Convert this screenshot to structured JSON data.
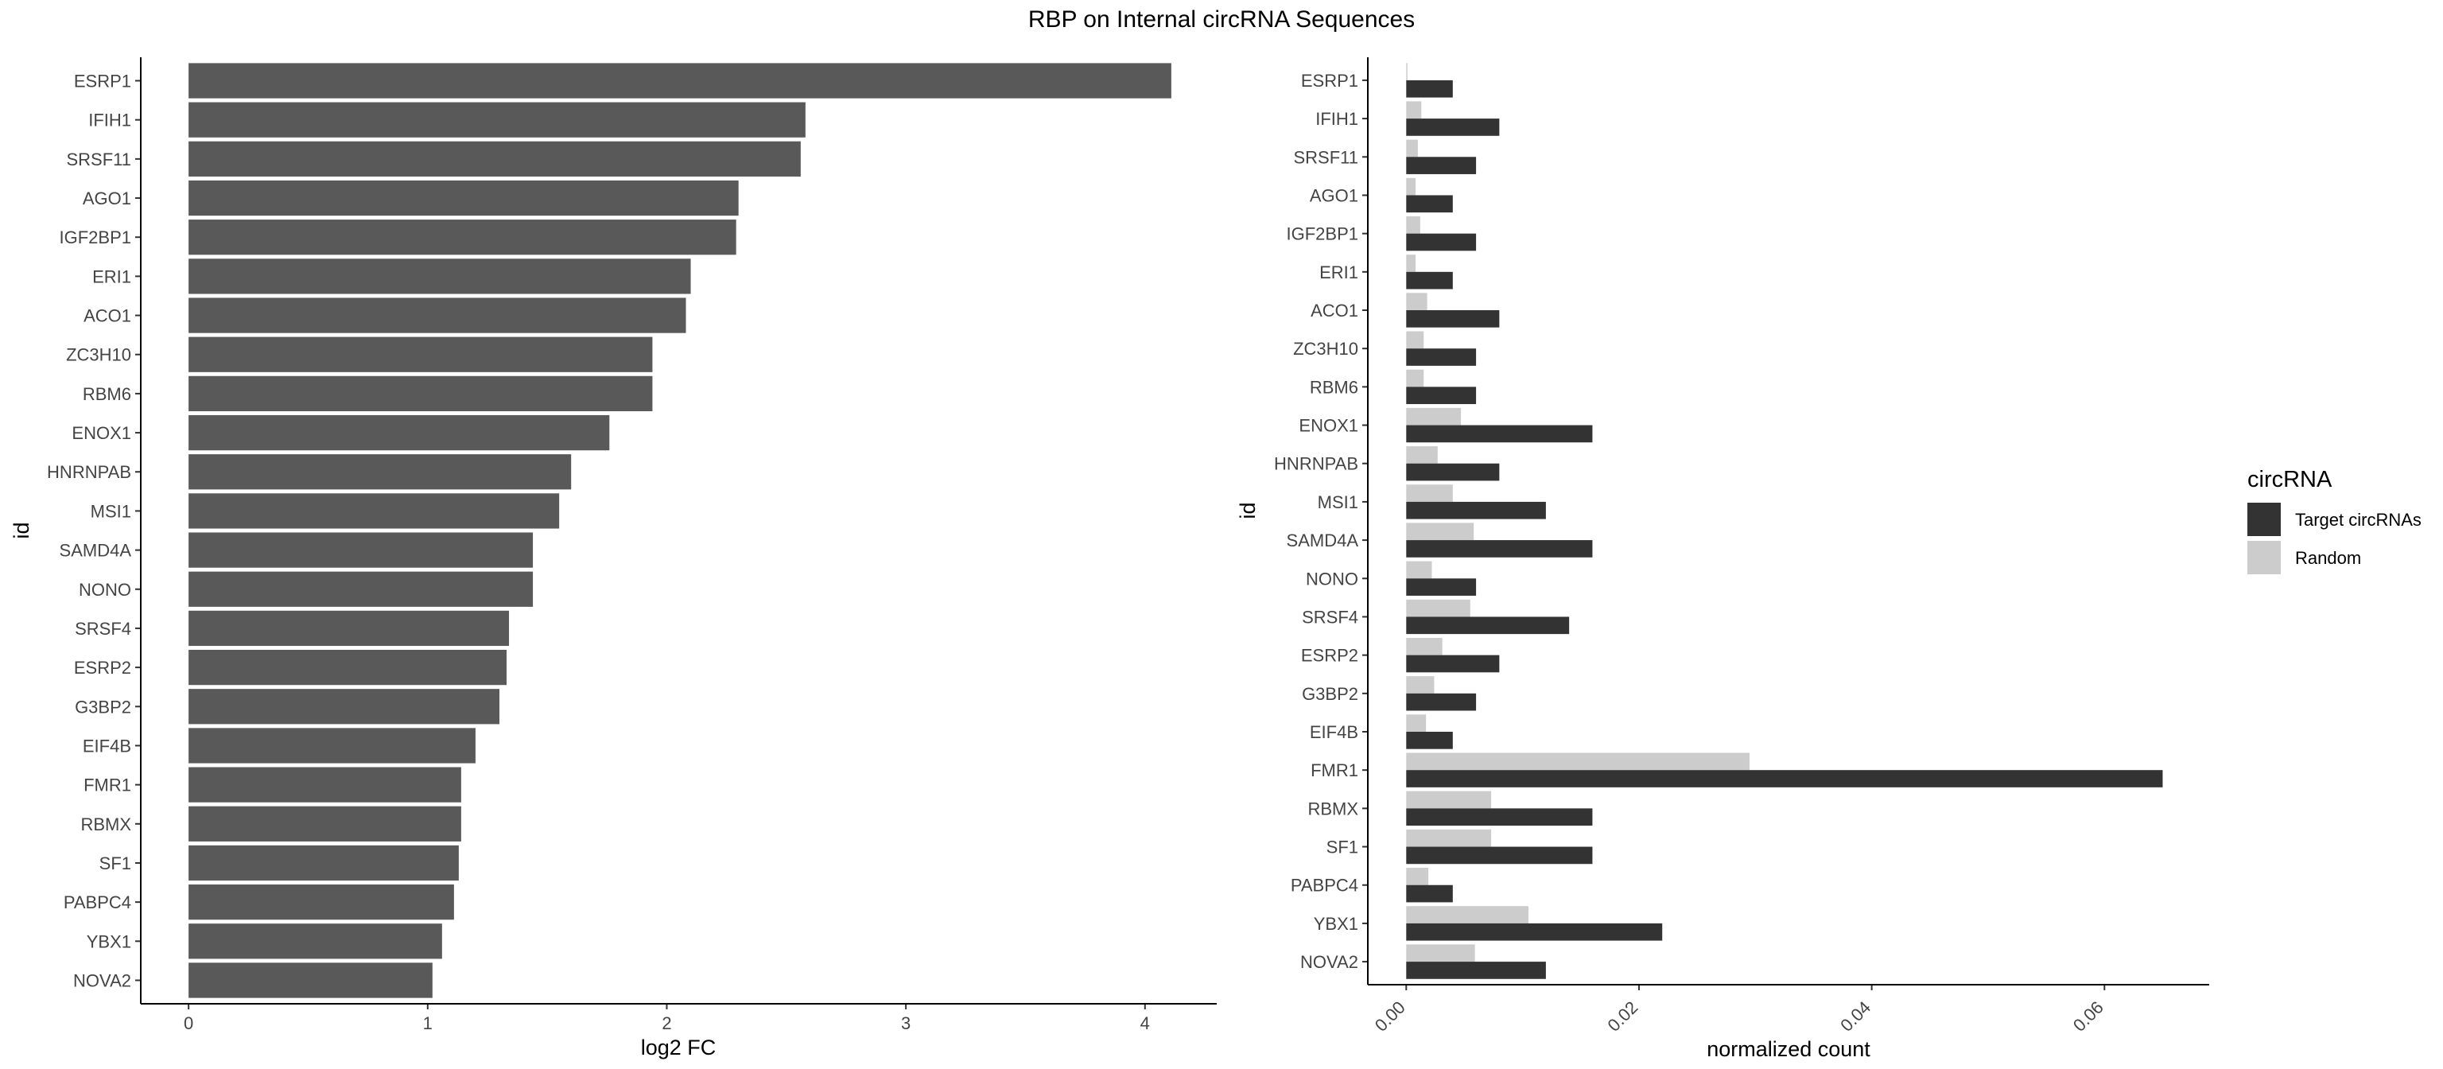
{
  "title": "RBP on Internal circRNA Sequences",
  "chart_data": [
    {
      "type": "bar",
      "orientation": "horizontal",
      "categories": [
        "ESRP1",
        "IFIH1",
        "SRSF11",
        "AGO1",
        "IGF2BP1",
        "ERI1",
        "ACO1",
        "ZC3H10",
        "RBM6",
        "ENOX1",
        "HNRNPAB",
        "MSI1",
        "SAMD4A",
        "NONO",
        "SRSF4",
        "ESRP2",
        "G3BP2",
        "EIF4B",
        "FMR1",
        "RBMX",
        "SF1",
        "PABPC4",
        "YBX1",
        "NOVA2"
      ],
      "values": [
        4.11,
        2.58,
        2.56,
        2.3,
        2.29,
        2.1,
        2.08,
        1.94,
        1.94,
        1.76,
        1.6,
        1.55,
        1.44,
        1.44,
        1.34,
        1.33,
        1.3,
        1.2,
        1.14,
        1.14,
        1.13,
        1.11,
        1.06,
        1.02
      ],
      "xlabel": "log2 FC",
      "ylabel": "id",
      "xlim": [
        -0.2,
        4.3
      ],
      "xticks": [
        "0",
        "1",
        "2",
        "3",
        "4"
      ],
      "bar_color": "#595959"
    },
    {
      "type": "bar",
      "orientation": "horizontal",
      "grouped": true,
      "categories": [
        "ESRP1",
        "IFIH1",
        "SRSF11",
        "AGO1",
        "IGF2BP1",
        "ERI1",
        "ACO1",
        "ZC3H10",
        "RBM6",
        "ENOX1",
        "HNRNPAB",
        "MSI1",
        "SAMD4A",
        "NONO",
        "SRSF4",
        "ESRP2",
        "G3BP2",
        "EIF4B",
        "FMR1",
        "RBMX",
        "SF1",
        "PABPC4",
        "YBX1",
        "NOVA2"
      ],
      "series": [
        {
          "name": "Target circRNAs",
          "color": "#333333",
          "values": [
            0.004,
            0.008,
            0.006,
            0.004,
            0.006,
            0.004,
            0.008,
            0.006,
            0.006,
            0.016,
            0.008,
            0.012,
            0.016,
            0.006,
            0.014,
            0.008,
            0.006,
            0.004,
            0.065,
            0.016,
            0.016,
            0.004,
            0.022,
            0.012
          ]
        },
        {
          "name": "Random",
          "color": "#cccccc",
          "values": [
            0.0001,
            0.0013,
            0.001,
            0.0008,
            0.0012,
            0.0008,
            0.0018,
            0.0015,
            0.0015,
            0.0047,
            0.0027,
            0.004,
            0.0058,
            0.0022,
            0.0055,
            0.0031,
            0.0024,
            0.0017,
            0.0295,
            0.0073,
            0.0073,
            0.0019,
            0.0105,
            0.0059
          ]
        }
      ],
      "xlabel": "normalized count",
      "ylabel": "id",
      "xlim": [
        -0.0033,
        0.069
      ],
      "xticks": [
        "0.00",
        "0.02",
        "0.04",
        "0.06"
      ],
      "legend": {
        "title": "circRNA",
        "position": "right",
        "items": [
          "Target circRNAs",
          "Random"
        ]
      }
    }
  ]
}
